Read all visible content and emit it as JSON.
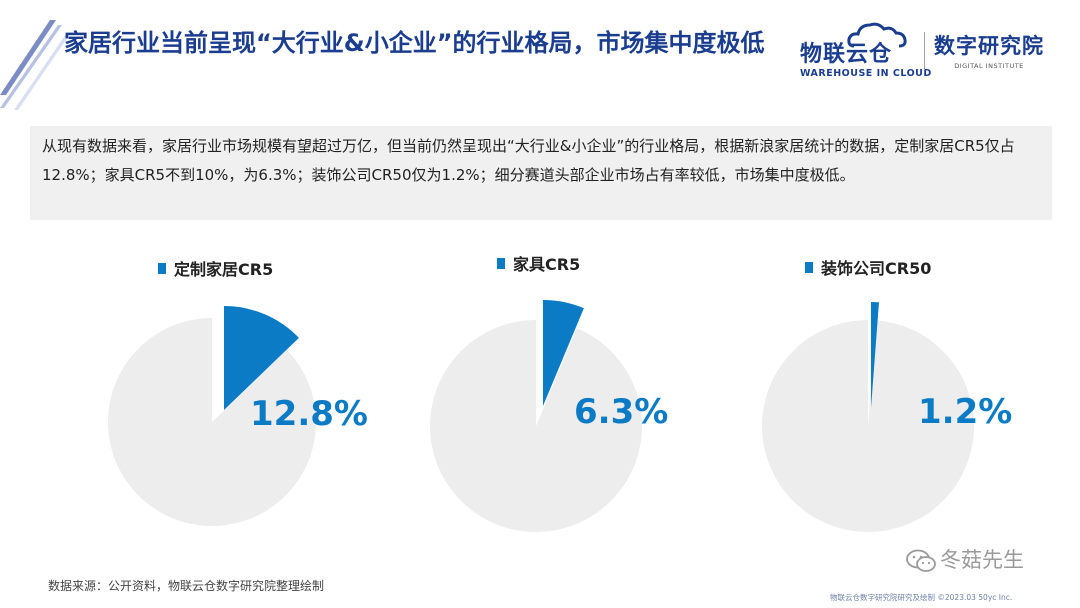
{
  "header": {
    "title": "家居行业当前呈现“大行业&小企业”的行业格局，市场集中度极低"
  },
  "logos": {
    "warehouse_name": "物联云仓",
    "warehouse_sub": "WAREHOUSE IN CLOUD",
    "institute_name": "数字研究院",
    "institute_sub": "DIGITAL INSTITUTE"
  },
  "intro": {
    "text": "从现有数据来看，家居行业市场规模有望超过万亿，但当前仍然呈现出“大行业&小企业”的行业格局，根据新浪家居统计的数据，定制家居CR5仅占12.8%；家具CR5不到10%，为6.3%；装饰公司CR50仅为1.2%；细分赛道头部企业市场占有率较低，市场集中度极低。"
  },
  "chart_data": [
    {
      "type": "pie",
      "series_name": "定制家居CR5",
      "value": 12.8,
      "value_label": "12.8%",
      "unit": "%",
      "highlight_color": "#0a7bc4",
      "rest_color": "#ededed"
    },
    {
      "type": "pie",
      "series_name": "家具CR5",
      "value": 6.3,
      "value_label": "6.3%",
      "unit": "%",
      "highlight_color": "#0a7bc4",
      "rest_color": "#ededed"
    },
    {
      "type": "pie",
      "series_name": "装饰公司CR50",
      "value": 1.2,
      "value_label": "1.2%",
      "unit": "%",
      "highlight_color": "#0a7bc4",
      "rest_color": "#ededed"
    }
  ],
  "footer": {
    "source": "数据来源：公开资料，物联云仓数字研究院整理绘制",
    "watermark": "冬菇先生",
    "credit": "物联云仓数字研究院研究及绘制    ©2023.03 50yc Inc."
  }
}
